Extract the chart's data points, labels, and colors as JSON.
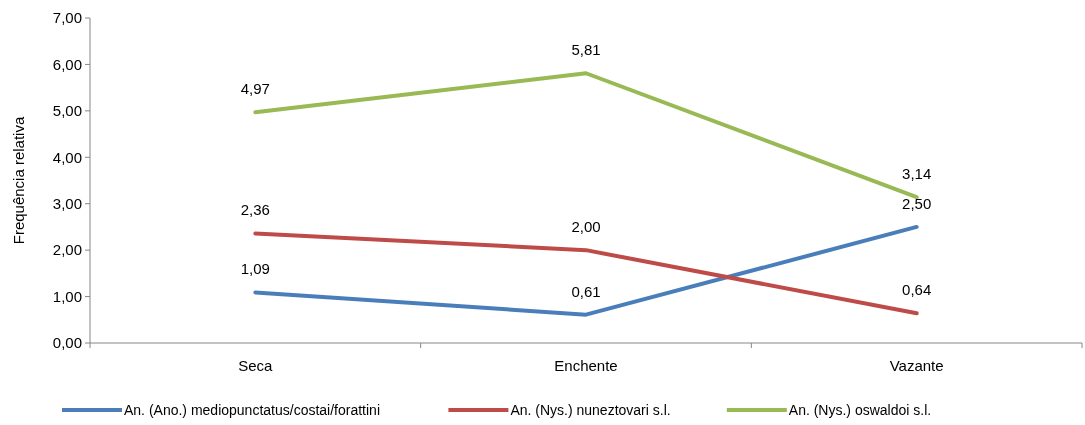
{
  "chart_data": {
    "type": "line",
    "ylabel": "Frequência relativa",
    "categories": [
      "Seca",
      "Enchente",
      "Vazante"
    ],
    "ylim": [
      0,
      7
    ],
    "yticks": [
      {
        "value": 0,
        "label": "0,00"
      },
      {
        "value": 1,
        "label": "1,00"
      },
      {
        "value": 2,
        "label": "2,00"
      },
      {
        "value": 3,
        "label": "3,00"
      },
      {
        "value": 4,
        "label": "4,00"
      },
      {
        "value": 5,
        "label": "5,00"
      },
      {
        "value": 6,
        "label": "6,00"
      },
      {
        "value": 7,
        "label": "7,00"
      }
    ],
    "legend": "bottom",
    "marker": "none",
    "line_style": "solid",
    "grid": false,
    "series": [
      {
        "name": "An. (Ano.) mediopunctatus/costai/forattini",
        "color": "#4a7ebb",
        "values": [
          1.09,
          0.61,
          2.5
        ],
        "value_labels": [
          "1,09",
          "0,61",
          "2,50"
        ]
      },
      {
        "name": "An. (Nys.) nuneztovari s.l.",
        "color": "#be4b48",
        "values": [
          2.36,
          2.0,
          0.64
        ],
        "value_labels": [
          "2,36",
          "2,00",
          "0,64"
        ]
      },
      {
        "name": "An. (Nys.) oswaldoi s.l.",
        "color": "#98b954",
        "values": [
          4.97,
          5.81,
          3.14
        ],
        "value_labels": [
          "4,97",
          "5,81",
          "3,14"
        ]
      }
    ]
  }
}
